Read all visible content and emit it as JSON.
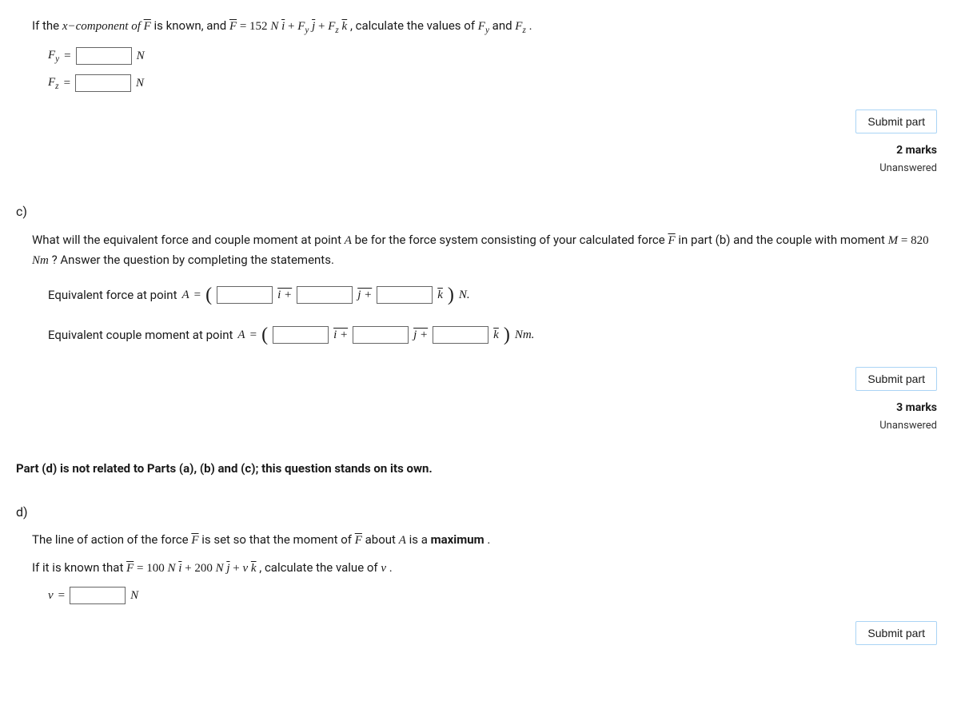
{
  "part_b": {
    "intro_prefix": "If the ",
    "intro_x_component": "x−component of ",
    "intro_F": "F",
    "intro_known": " is known, and ",
    "intro_F_eq": "F",
    "intro_eq": " = 152 ",
    "intro_N": "N ",
    "intro_i": "i",
    "intro_plus1": " + ",
    "intro_Fy": "F",
    "intro_y_sub": "y",
    "intro_j": " j",
    "intro_plus2": " + ",
    "intro_Fz": "F",
    "intro_z_sub": "z",
    "intro_k": " k",
    "intro_calc": " , calculate the values of ",
    "intro_Fy2": "F",
    "intro_y_sub2": "y",
    "intro_and": " and ",
    "intro_Fz2": "F",
    "intro_z_sub2": "z",
    "intro_period": ".",
    "fy_label": "F",
    "fy_sub": "y",
    "fz_label": "F",
    "fz_sub": "z",
    "eq_sign": " = ",
    "unit_N": "N",
    "submit_label": "Submit part",
    "marks": "2 marks",
    "status": "Unanswered"
  },
  "part_c": {
    "label": "c)",
    "intro_1": "What will the equivalent force and couple moment at point ",
    "intro_A": "A",
    "intro_2": " be for the force system consisting of your calculated force ",
    "intro_F": "F",
    "intro_3": " in part (b) and the couple with moment ",
    "intro_M": "M",
    "intro_eq": " = 820 ",
    "intro_Nm": "Nm",
    "intro_4": "? Answer the question by completing the statements.",
    "force_label": "Equivalent force at point ",
    "force_A": "A",
    "force_eq": " = ",
    "moment_label": "Equivalent couple moment at point ",
    "moment_A": "A",
    "moment_eq": " = ",
    "i_plus": "i +",
    "j_plus": "j +",
    "k_paren": "k",
    "unit_N": "N.",
    "unit_Nm": "Nm.",
    "submit_label": "Submit part",
    "marks": "3 marks",
    "status": "Unanswered"
  },
  "part_d_note": "Part (d) is not related to Parts (a), (b) and (c); this question stands on its own.",
  "part_d": {
    "label": "d)",
    "line1_1": "The line of action of the force ",
    "line1_F": "F",
    "line1_2": " is set so that the moment of ",
    "line1_F2": "F",
    "line1_3": " about ",
    "line1_A": "A",
    "line1_4": " is a ",
    "line1_max": "maximum",
    "line1_period": ".",
    "line2_1": "If it is known that ",
    "line2_F": "F",
    "line2_eq": " = 100 ",
    "line2_N": "N ",
    "line2_i": "i",
    "line2_plus": " + 200 ",
    "line2_N2": "N",
    "line2_j": "j",
    "line2_plus2": " + ",
    "line2_v": "v",
    "line2_k": "k",
    "line2_calc": " , calculate the value of ",
    "line2_v2": "v",
    "line2_period": ".",
    "v_label": "v",
    "eq_sign": " = ",
    "unit_N": "N",
    "submit_label": "Submit part"
  }
}
